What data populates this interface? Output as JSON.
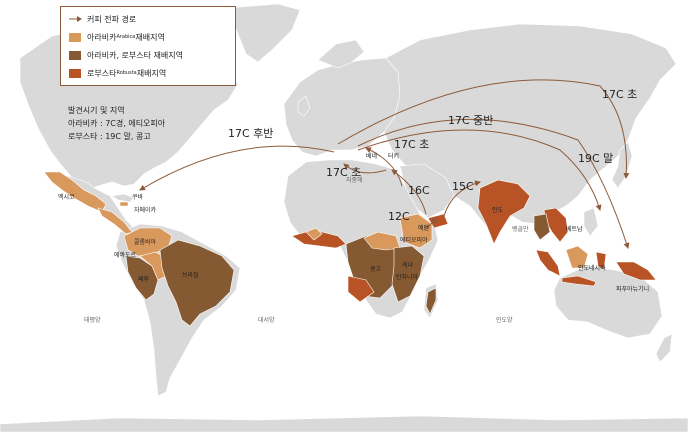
{
  "legend": {
    "route_label": "커피 전파 경로",
    "arabica_main": "아라비카",
    "arabica_sub": "Arabica",
    "arabica_tail": " 재배지역",
    "both_label": "아라비카, 로부스타 재배지역",
    "robusta_main": "로부스타",
    "robusta_sub": "Robusta",
    "robusta_tail": " 재배지역"
  },
  "discovery": {
    "title": "발견시기 및 지역",
    "arabica": "아라비카 : 7C경, 에티오피아",
    "robusta": "로부스타 : 19C 말, 콩고"
  },
  "routes": {
    "r_late17": "17C 후반",
    "r_early17_eu": "17C 초",
    "r_early17_tr": "17C 초",
    "r_16": "16C",
    "r_12": "12C",
    "r_15": "15C",
    "r_mid17": "17C 중반",
    "r_19late": "19C 말",
    "r_early17_jp": "17C 초"
  },
  "countries": {
    "mexico": "멕시코",
    "cuba": "쿠바",
    "jamaica": "자메이카",
    "colombia": "콜롬비아",
    "ecuador": "에콰도르",
    "peru": "페루",
    "brazil": "브라질",
    "congo": "콩고",
    "ethiopia": "에티오피아",
    "kenya": "케냐",
    "tanzania": "탄자니아",
    "yemen": "예멘",
    "india": "인도",
    "vietnam": "베트남",
    "indonesia": "인도네시아",
    "papua": "파푸아뉴기니",
    "turkey": "터키",
    "venice": "베네",
    "bengal": "벵골만"
  },
  "seas": {
    "pacific": "태평양",
    "atlantic": "대서양",
    "indian": "인도양",
    "mediterranean": "지중해"
  },
  "colors": {
    "land": "#d9d9d9",
    "arabica": "#d9985c",
    "both": "#855a33",
    "robusta": "#b85326",
    "route": "#8c5a3a"
  }
}
